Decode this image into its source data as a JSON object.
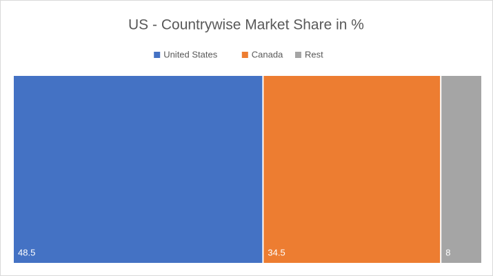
{
  "chart_data": {
    "type": "treemap",
    "title": "US - Countrywise Market Share in %",
    "categories": [
      "United States",
      "Canada",
      "Rest"
    ],
    "values": [
      48.5,
      34.5,
      8
    ],
    "colors": [
      "#4472c4",
      "#ed7d31",
      "#a5a5a5"
    ]
  }
}
